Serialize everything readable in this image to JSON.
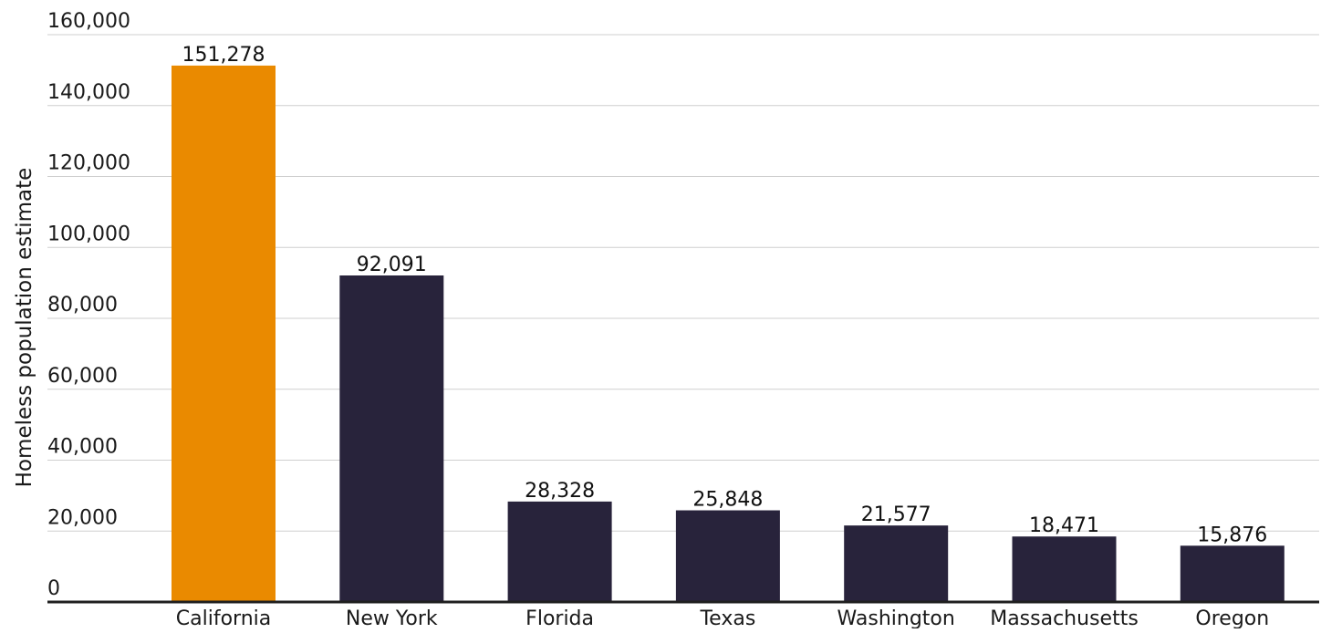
{
  "chart_data": {
    "type": "bar",
    "ylabel": "Homeless population estimate",
    "xlabel": "",
    "ylim": [
      0,
      160000
    ],
    "yticks": [
      0,
      20000,
      40000,
      60000,
      80000,
      100000,
      120000,
      140000,
      160000
    ],
    "ytick_labels": [
      "0",
      "20,000",
      "40,000",
      "60,000",
      "80,000",
      "100,000",
      "120,000",
      "140,000",
      "160,000"
    ],
    "grid": true,
    "categories": [
      "California",
      "New York",
      "Florida",
      "Texas",
      "Washington",
      "Massachusetts",
      "Oregon"
    ],
    "values": [
      151278,
      92091,
      28328,
      25848,
      21577,
      18471,
      15876
    ],
    "data_labels": [
      "151,278",
      "92,091",
      "28,328",
      "25,848",
      "21,577",
      "18,471",
      "15,876"
    ],
    "highlight_index": 0,
    "colors": {
      "bar": "#28233b",
      "highlight": "#ea8a00",
      "grid": "#cfcfcf",
      "baseline": "#1f1f1f",
      "text": "#1a1a1a"
    }
  }
}
